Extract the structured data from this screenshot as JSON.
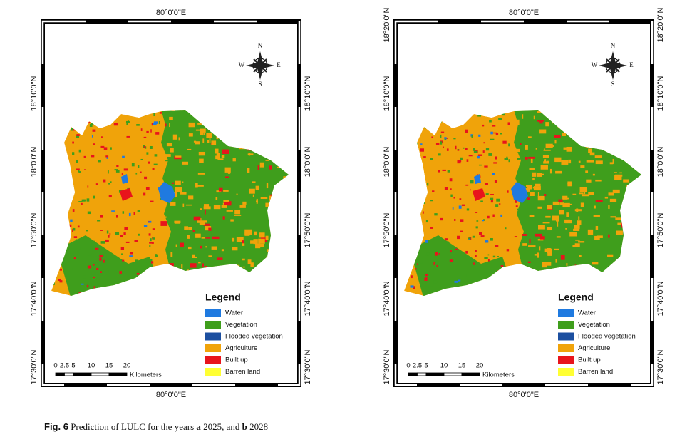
{
  "panels": [
    {
      "top_label": "80°0'0\"E",
      "bottom_label": "80°0'0\"E",
      "left_labels": [
        "18°10'0\"N",
        "18°0'0\"N",
        "17°50'0\"N",
        "17°40'0\"N",
        "17°30'0\"N"
      ],
      "right_labels": [
        "18°10'0\"N",
        "18°0'0\"N",
        "17°50'0\"N",
        "17°40'0\"N",
        "17°30'0\"N"
      ],
      "compass": {
        "n": "N",
        "e": "E",
        "s": "S",
        "w": "W"
      },
      "legend": {
        "title": "Legend",
        "items": [
          {
            "label": "Water",
            "color": "#1f7ae0"
          },
          {
            "label": "Vegetation",
            "color": "#3f9e1c"
          },
          {
            "label": "Flooded vegetation",
            "color": "#1c4fa0"
          },
          {
            "label": "Agriculture",
            "color": "#f0a30a"
          },
          {
            "label": "Built up",
            "color": "#e8141c"
          },
          {
            "label": "Barren land",
            "color": "#ffff33"
          }
        ]
      },
      "scale": {
        "ticks": [
          0,
          2.5,
          5,
          10,
          15,
          20
        ],
        "unit": "Kilometers"
      }
    },
    {
      "top_label": "80°0'0\"E",
      "bottom_label": "80°0'0\"E",
      "left_labels": [
        "18°20'0\"N",
        "18°10'0\"N",
        "18°0'0\"N",
        "17°50'0\"N",
        "17°40'0\"N",
        "17°30'0\"N"
      ],
      "right_labels": [
        "18°20'0\"N",
        "18°10'0\"N",
        "18°0'0\"N",
        "17°50'0\"N",
        "17°40'0\"N",
        "17°30'0\"N"
      ],
      "compass": {
        "n": "N",
        "e": "E",
        "s": "S",
        "w": "W"
      },
      "legend": {
        "title": "Legend",
        "items": [
          {
            "label": "Water",
            "color": "#1f7ae0"
          },
          {
            "label": "Vegetation",
            "color": "#3f9e1c"
          },
          {
            "label": "Flooded vegetation",
            "color": "#1c4fa0"
          },
          {
            "label": "Agriculture",
            "color": "#f0a30a"
          },
          {
            "label": "Built up",
            "color": "#e8141c"
          },
          {
            "label": "Barren land",
            "color": "#ffff33"
          }
        ]
      },
      "scale": {
        "ticks": [
          0,
          2.5,
          5,
          10,
          15,
          20
        ],
        "unit": "Kilometers"
      }
    }
  ],
  "caption": {
    "label": "Fig. 6",
    "text_1": "Prediction of LULC for the years",
    "a": "a",
    "text_2": "2025, and",
    "b": "b",
    "text_3": "2028"
  }
}
